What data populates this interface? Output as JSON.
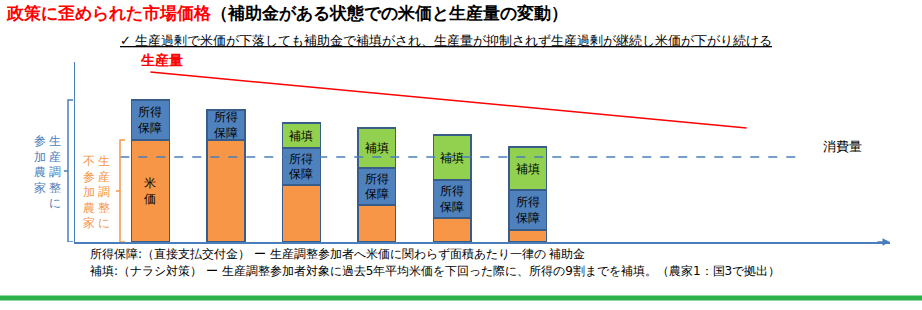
{
  "chart_data": {
    "type": "bar",
    "title": [
      "政策に歪められた市場価格",
      "（補助金がある状態での米価と生産量の変動）"
    ],
    "subtitle": "✓ 生産過剰で米価が下落しても補助金で補填がされ、生産量が抑制されず生産過剰が継続し米価が下がり続ける",
    "notes": [
      "所得保障:（直接支払交付金） ー 生産調整参加者へ米価に関わらず面積あたり一律の 補助金",
      "補填:（ナラシ対策） ー 生産調整参加者対象に過去5年平均米価を下回った際に、所得の9割までを補填。（農家1：国3で拠出）"
    ],
    "stacked": true,
    "grid": false,
    "tick_labels": false,
    "xlim": [
      0,
      10.8
    ],
    "xticks": [],
    "ylim": [
      0,
      180
    ],
    "yticks": [],
    "x": [
      1,
      2,
      3,
      4,
      5,
      6
    ],
    "series": [
      {
        "name": "米価",
        "type": "bar",
        "color": "#F79646",
        "values": [
          102,
          102,
          57,
          37,
          24,
          12
        ],
        "labels": [
          "米\n価",
          null,
          null,
          null,
          null,
          null
        ]
      },
      {
        "name": "所得保障",
        "type": "bar",
        "color": "#4F81BD",
        "values": [
          40,
          30,
          37,
          37,
          38,
          40
        ],
        "labels": [
          "所得\n保障",
          "所得\n保障",
          "所得\n保障",
          "所得\n保障",
          "所得\n保障",
          "所得\n保障"
        ]
      },
      {
        "name": "補填",
        "type": "bar",
        "color": "#92D050",
        "values": [
          null,
          null,
          25,
          40,
          45,
          43
        ],
        "labels": [
          null,
          null,
          "補填",
          "補填",
          "補填",
          "補填"
        ]
      },
      {
        "name": "生産量",
        "type": "line",
        "color": "#FF0000",
        "line_style": "solid",
        "x": [
          1,
          8.9
        ],
        "values": [
          170,
          114
        ]
      },
      {
        "name": "消費量",
        "type": "line",
        "color": "#4A7EBB",
        "line_style": "dashed",
        "x": [
          0.6,
          9.6
        ],
        "values": [
          85,
          85
        ]
      }
    ],
    "braces": [
      {
        "lines": [
          "生産調整に",
          "参加農家"
        ],
        "color": "#4A7EBB",
        "covers": [
          "米価",
          "所得保障"
        ]
      },
      {
        "lines": [
          "生産調整に",
          "不参加農家"
        ],
        "color": "#F79646",
        "covers": [
          "米価"
        ]
      }
    ]
  }
}
